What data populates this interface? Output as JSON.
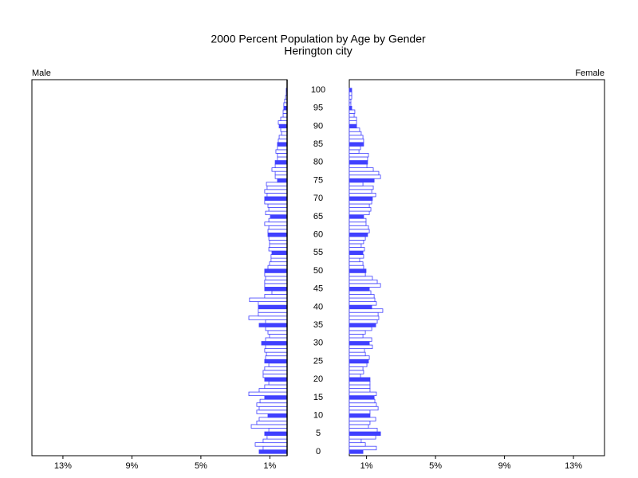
{
  "chart_data": {
    "type": "pyramid",
    "title": "2000 Percent Population by Age by Gender",
    "subtitle": "Herington city",
    "categories": [
      "0",
      null,
      null,
      null,
      null,
      "5",
      null,
      null,
      null,
      null,
      "10",
      null,
      null,
      null,
      null,
      "15",
      null,
      null,
      null,
      null,
      "20",
      null,
      null,
      null,
      null,
      "25",
      null,
      null,
      null,
      null,
      "30",
      null,
      null,
      null,
      null,
      "35",
      null,
      null,
      null,
      null,
      "40",
      null,
      null,
      null,
      null,
      "45",
      null,
      null,
      null,
      null,
      "50",
      null,
      null,
      null,
      null,
      "55",
      null,
      null,
      null,
      null,
      "60",
      null,
      null,
      null,
      null,
      "65",
      null,
      null,
      null,
      null,
      "70",
      null,
      null,
      null,
      null,
      "75",
      null,
      null,
      null,
      null,
      "80",
      null,
      null,
      null,
      null,
      "85",
      null,
      null,
      null,
      null,
      "90",
      null,
      null,
      null,
      null,
      "95",
      null,
      null,
      null,
      null,
      "100"
    ],
    "series": [
      {
        "name": "Male",
        "color": "#4040ff",
        "values": [
          1.62,
          1.39,
          1.85,
          1.39,
          1.16,
          1.3,
          1.06,
          2.08,
          1.76,
          1.62,
          1.11,
          1.76,
          1.62,
          1.76,
          1.57,
          1.3,
          2.22,
          1.62,
          1.3,
          1.06,
          1.3,
          1.39,
          1.39,
          1.3,
          1.06,
          1.3,
          1.25,
          1.2,
          1.3,
          1.25,
          1.48,
          1.25,
          1.02,
          1.11,
          1.25,
          1.62,
          1.25,
          2.22,
          1.67,
          1.67,
          1.67,
          1.67,
          2.18,
          1.3,
          0.88,
          1.3,
          1.3,
          1.3,
          1.25,
          1.3,
          1.3,
          1.11,
          1.02,
          0.93,
          0.93,
          0.88,
          1.06,
          1.02,
          1.02,
          1.06,
          1.11,
          1.11,
          1.06,
          1.3,
          1.06,
          0.97,
          1.25,
          1.06,
          1.11,
          1.3,
          1.3,
          1.16,
          1.3,
          1.16,
          1.2,
          0.56,
          0.69,
          0.69,
          0.88,
          0.69,
          0.69,
          0.56,
          0.56,
          0.65,
          0.56,
          0.56,
          0.51,
          0.46,
          0.32,
          0.37,
          0.46,
          0.51,
          0.37,
          0.23,
          0.23,
          0.19,
          0.19,
          0.14,
          0.09,
          0.05,
          0.05
        ]
      },
      {
        "name": "Female",
        "color": "#4040ff",
        "values": [
          0.79,
          1.57,
          0.93,
          0.69,
          1.53,
          1.81,
          1.62,
          1.11,
          1.2,
          1.53,
          1.2,
          1.2,
          1.67,
          1.57,
          1.48,
          1.44,
          1.57,
          1.2,
          1.2,
          1.2,
          1.2,
          0.65,
          0.83,
          0.79,
          1.02,
          1.11,
          1.16,
          0.93,
          0.88,
          1.34,
          1.16,
          1.3,
          0.79,
          0.93,
          1.3,
          1.53,
          1.62,
          1.71,
          1.67,
          1.94,
          1.3,
          1.57,
          1.48,
          1.44,
          1.25,
          1.16,
          1.81,
          1.62,
          1.34,
          0.93,
          0.97,
          0.83,
          0.79,
          0.6,
          0.83,
          0.79,
          0.88,
          0.69,
          0.83,
          0.93,
          1.06,
          1.16,
          1.11,
          0.97,
          0.97,
          0.83,
          1.16,
          1.25,
          1.16,
          1.3,
          1.34,
          1.53,
          1.3,
          1.39,
          0.79,
          1.44,
          1.81,
          1.71,
          1.39,
          1.02,
          1.06,
          1.06,
          1.11,
          0.56,
          0.65,
          0.83,
          0.83,
          0.79,
          0.69,
          0.6,
          0.42,
          0.42,
          0.42,
          0.28,
          0.32,
          0.14,
          0.09,
          0.09,
          0.14,
          0.14,
          0.14
        ]
      }
    ],
    "xlim": [
      0,
      14.8
    ],
    "xticks": [
      {
        "value": 1,
        "label": "1%"
      },
      {
        "value": 5,
        "label": "5%"
      },
      {
        "value": 9,
        "label": "9%"
      },
      {
        "value": 13,
        "label": "13%"
      }
    ]
  }
}
